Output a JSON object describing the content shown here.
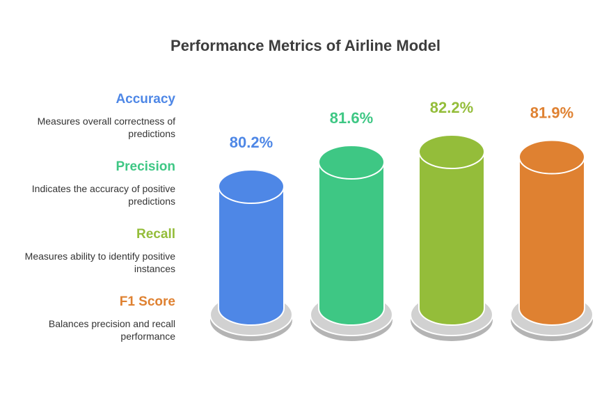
{
  "title": "Performance Metrics of Airline Model",
  "chart_data": {
    "type": "bar",
    "categories": [
      "Accuracy",
      "Precision",
      "Recall",
      "F1 Score"
    ],
    "values": [
      80.2,
      81.6,
      82.2,
      81.9
    ],
    "value_labels": [
      "80.2%",
      "81.6%",
      "82.2%",
      "81.9%"
    ],
    "descriptions": [
      "Measures overall correctness of predictions",
      "Indicates the accuracy of positive predictions",
      "Measures ability to identify positive instances",
      "Balances precision and recall performance"
    ],
    "colors": [
      "#4e87e6",
      "#3ec784",
      "#94bd3a",
      "#df8131"
    ],
    "legend_position": "left"
  }
}
